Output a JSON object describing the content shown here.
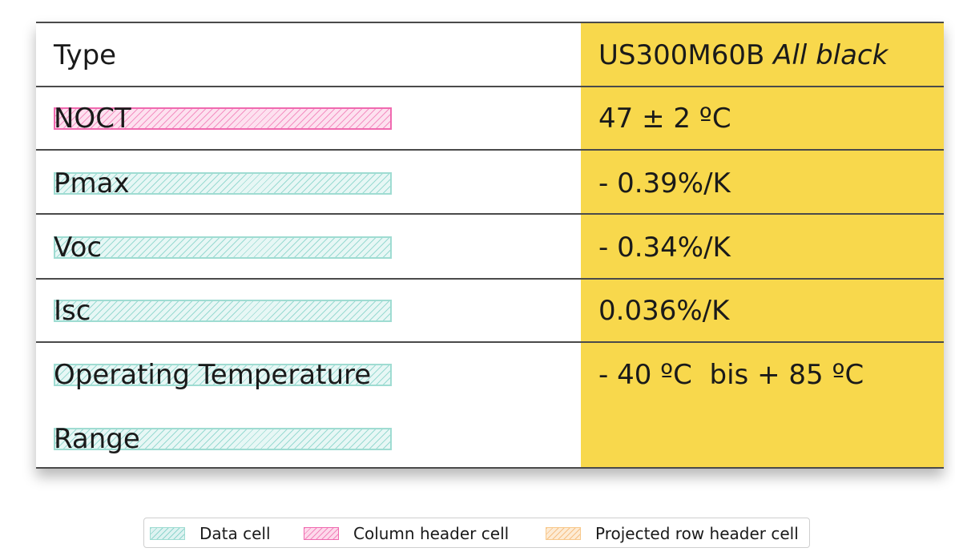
{
  "table": {
    "rows": [
      {
        "label": "Type",
        "value": "US300M60B",
        "value_italic": "All black",
        "label_role": "none"
      },
      {
        "label": "NOCT",
        "value": "47 ± 2 ºC",
        "label_role": "column-header"
      },
      {
        "label": "Pmax",
        "value": "- 0.39%/K",
        "label_role": "data"
      },
      {
        "label": "Voc",
        "value": "- 0.34%/K",
        "label_role": "data"
      },
      {
        "label": "Isc",
        "value": "0.036%/K",
        "label_role": "data"
      },
      {
        "label": "Operating Temperature",
        "label_line2": "Range",
        "value": "- 40 ºC  bis + 85 ºC",
        "label_role": "data"
      }
    ],
    "colors": {
      "value_column": "#f8d84c",
      "data_cell": "#9fdcd2",
      "column_header_cell": "#f06ab0",
      "projected_row_header_cell": "#f8c88a"
    }
  },
  "legend": {
    "data_cell": "Data cell",
    "column_header_cell": "Column header cell",
    "projected_row_header_cell": "Projected row header cell"
  }
}
